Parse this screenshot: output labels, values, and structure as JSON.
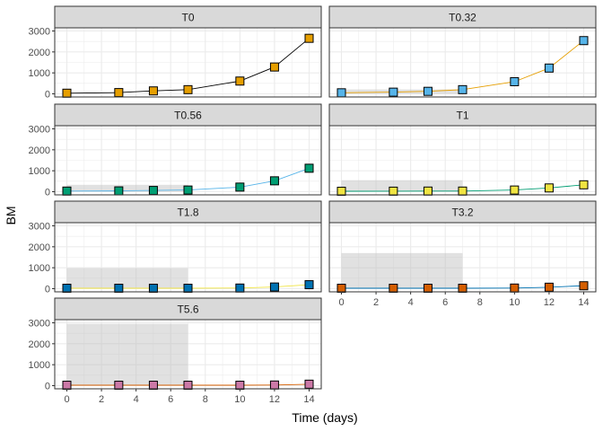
{
  "chart_data": {
    "type": "line",
    "xlabel": "Time (days)",
    "ylabel": "BM",
    "xlim": [
      -0.7,
      14.7
    ],
    "ylim": [
      -150,
      3150
    ],
    "x_ticks": [
      0,
      2,
      4,
      6,
      8,
      10,
      12,
      14
    ],
    "y_ticks": [
      0,
      1000,
      2000,
      3000
    ],
    "grid": true,
    "x": [
      0,
      3,
      5,
      7,
      10,
      12,
      14
    ],
    "panels": [
      {
        "name": "T0",
        "color": "#E69F00",
        "line_color": "#000000",
        "values": [
          30,
          60,
          140,
          200,
          610,
          1280,
          2650
        ],
        "band": null
      },
      {
        "name": "T0.32",
        "color": "#56B4E9",
        "line_color": "#E69F00",
        "values": [
          50,
          80,
          120,
          200,
          580,
          1230,
          2540
        ],
        "band": {
          "x": [
            0,
            7
          ],
          "y": [
            0,
            210
          ]
        }
      },
      {
        "name": "T0.56",
        "color": "#009E73",
        "line_color": "#56B4E9",
        "values": [
          30,
          40,
          60,
          80,
          220,
          520,
          1120
        ],
        "band": {
          "x": [
            0,
            7
          ],
          "y": [
            0,
            330
          ]
        }
      },
      {
        "name": "T1",
        "color": "#F0E442",
        "line_color": "#009E73",
        "values": [
          20,
          25,
          30,
          30,
          80,
          180,
          330
        ],
        "band": {
          "x": [
            0,
            7
          ],
          "y": [
            0,
            550
          ]
        }
      },
      {
        "name": "T1.8",
        "color": "#0072B2",
        "line_color": "#F0E442",
        "values": [
          20,
          20,
          20,
          20,
          30,
          80,
          190
        ],
        "band": {
          "x": [
            0,
            7
          ],
          "y": [
            0,
            980
          ]
        }
      },
      {
        "name": "T3.2",
        "color": "#D55E00",
        "line_color": "#0072B2",
        "values": [
          20,
          20,
          20,
          20,
          30,
          70,
          140
        ],
        "band": {
          "x": [
            0,
            7
          ],
          "y": [
            0,
            1700
          ]
        }
      },
      {
        "name": "T5.6",
        "color": "#CC79A7",
        "line_color": "#D55E00",
        "values": [
          20,
          20,
          20,
          20,
          20,
          30,
          70
        ],
        "band": {
          "x": [
            0,
            7
          ],
          "y": [
            0,
            2950
          ]
        }
      }
    ]
  }
}
